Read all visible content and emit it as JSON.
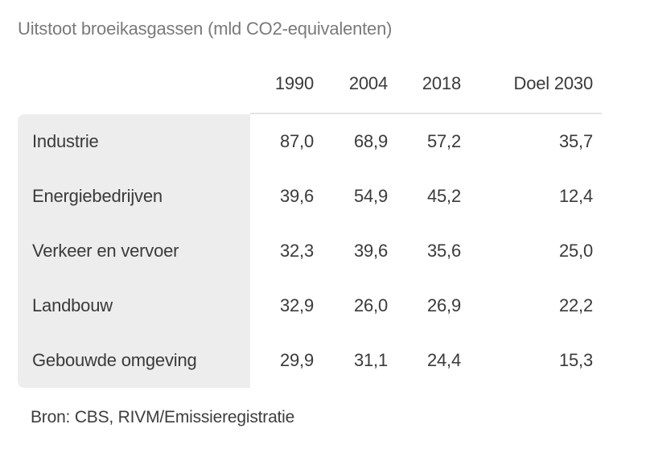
{
  "title": "Uitstoot broeikasgassen (mld CO2-equivalenten)",
  "source": "Bron: CBS, RIVM/Emissieregistratie",
  "table": {
    "columns": [
      "1990",
      "2004",
      "2018",
      "Doel 2030"
    ],
    "rows": [
      {
        "label": "Industrie",
        "values": [
          "87,0",
          "68,9",
          "57,2",
          "35,7"
        ]
      },
      {
        "label": "Energiebedrijven",
        "values": [
          "39,6",
          "54,9",
          "45,2",
          "12,4"
        ]
      },
      {
        "label": "Verkeer en vervoer",
        "values": [
          "32,3",
          "39,6",
          "35,6",
          "25,0"
        ]
      },
      {
        "label": "Landbouw",
        "values": [
          "32,9",
          "26,0",
          "26,9",
          "22,2"
        ]
      },
      {
        "label": "Gebouwde omgeving",
        "values": [
          "29,9",
          "31,1",
          "24,4",
          "15,3"
        ]
      }
    ]
  },
  "colors": {
    "title_text": "#7a7a7a",
    "body_text": "#3a3a3a",
    "label_column_background": "#ededed",
    "divider_line": "#e4e4e4",
    "page_background": "#ffffff"
  },
  "chart_data": {
    "type": "table",
    "title": "Uitstoot broeikasgassen (mld CO2-equivalenten)",
    "categories": [
      "Industrie",
      "Energiebedrijven",
      "Verkeer en vervoer",
      "Landbouw",
      "Gebouwde omgeving"
    ],
    "series": [
      {
        "name": "1990",
        "values": [
          87.0,
          39.6,
          32.3,
          32.9,
          29.9
        ]
      },
      {
        "name": "2004",
        "values": [
          68.9,
          54.9,
          39.6,
          26.0,
          31.1
        ]
      },
      {
        "name": "2018",
        "values": [
          57.2,
          45.2,
          35.6,
          26.9,
          24.4
        ]
      },
      {
        "name": "Doel 2030",
        "values": [
          35.7,
          12.4,
          25.0,
          22.2,
          15.3
        ]
      }
    ],
    "unit": "mld CO2-equivalenten",
    "source": "Bron: CBS, RIVM/Emissieregistratie",
    "layout": {
      "label_column_shaded": true,
      "numbers_right_aligned": true,
      "grid": "none"
    }
  }
}
